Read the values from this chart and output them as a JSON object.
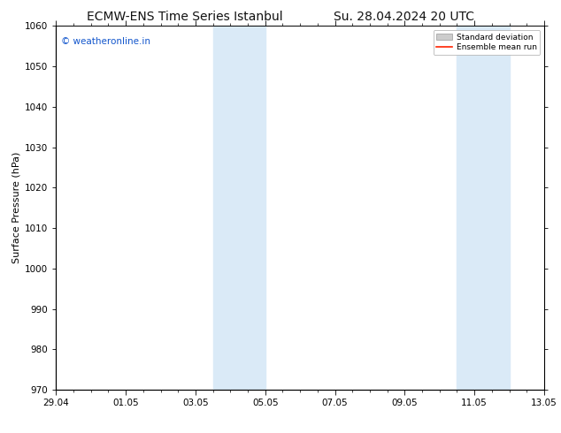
{
  "title_left": "ECMW-ENS Time Series Istanbul",
  "title_right": "Su. 28.04.2024 20 UTC",
  "ylabel": "Surface Pressure (hPa)",
  "ylim": [
    970,
    1060
  ],
  "yticks": [
    970,
    980,
    990,
    1000,
    1010,
    1020,
    1030,
    1040,
    1050,
    1060
  ],
  "xtick_labels": [
    "29.04",
    "01.05",
    "03.05",
    "05.05",
    "07.05",
    "09.05",
    "11.05",
    "13.05"
  ],
  "xtick_positions": [
    0,
    2,
    4,
    6,
    8,
    10,
    12,
    14
  ],
  "x_min": 0,
  "x_max": 14,
  "shaded_bands": [
    {
      "x_start": 4.5,
      "x_end": 6.0
    },
    {
      "x_start": 11.5,
      "x_end": 13.0
    }
  ],
  "shaded_color": "#daeaf7",
  "watermark_text": "© weatheronline.in",
  "watermark_color": "#1155cc",
  "legend_std_label": "Standard deviation",
  "legend_mean_label": "Ensemble mean run",
  "legend_std_color": "#cccccc",
  "legend_mean_color": "#ff2200",
  "background_color": "#ffffff",
  "title_fontsize": 10,
  "ylabel_fontsize": 8,
  "tick_fontsize": 7.5
}
